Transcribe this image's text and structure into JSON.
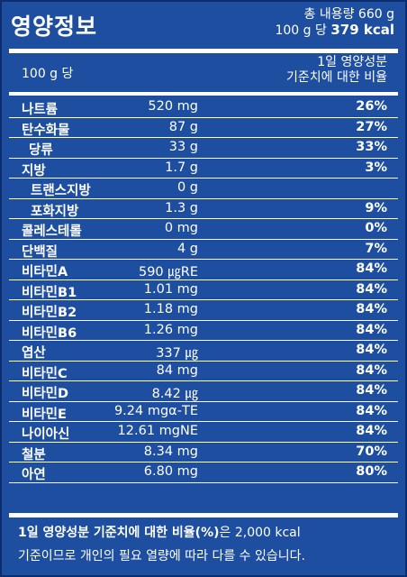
{
  "header": {
    "title": "영양정보",
    "total_label": "총 내용량 660 g",
    "per_label": "100 g 당",
    "kcal": "379 kcal"
  },
  "column_head": {
    "left": "100 g 당",
    "right_line1": "1일 영양성분",
    "right_line2": "기준치에 대한 비율"
  },
  "rows": [
    {
      "name": "나트륨",
      "amount": "520 mg",
      "pct": "26%"
    },
    {
      "name": "탄수화물",
      "amount": "87 g",
      "pct": "27%"
    },
    {
      "name": "당류",
      "amount": "33 g",
      "pct": "33%"
    },
    {
      "name": "지방",
      "amount": "1.7 g",
      "pct": "3%"
    },
    {
      "name": "트랜스지방",
      "amount": "0 g",
      "pct": ""
    },
    {
      "name": "포화지방",
      "amount": "1.3 g",
      "pct": "9%"
    },
    {
      "name": "콜레스테롤",
      "amount": "0 mg",
      "pct": "0%"
    },
    {
      "name": "단백질",
      "amount": "4 g",
      "pct": "7%"
    },
    {
      "name": "비타민A",
      "amount": "590 ㎍RE",
      "pct": "84%"
    },
    {
      "name": "비타민B1",
      "amount": "1.01 mg",
      "pct": "84%"
    },
    {
      "name": "비타민B2",
      "amount": "1.18 mg",
      "pct": "84%"
    },
    {
      "name": "비타민B6",
      "amount": "1.26 mg",
      "pct": "84%"
    },
    {
      "name": "엽산",
      "amount": "337 ㎍",
      "pct": "84%"
    },
    {
      "name": "비타민C",
      "amount": "84 mg",
      "pct": "84%"
    },
    {
      "name": "비타민D",
      "amount": "8.42 ㎍",
      "pct": "84%"
    },
    {
      "name": "비타민E",
      "amount": "9.24 mgα-TE",
      "pct": "84%"
    },
    {
      "name": "나이아신",
      "amount": "12.61 mgNE",
      "pct": "84%"
    },
    {
      "name": "철분",
      "amount": "8.34 mg",
      "pct": "70%"
    },
    {
      "name": "아연",
      "amount": "6.80 mg",
      "pct": "80%"
    }
  ],
  "footer": {
    "line1_bold": "1일 영양성분 기준치에 대한 비율(%)",
    "line1_rest": "은 2,000 kcal",
    "line2": "기준이므로 개인의 필요 열량에 따라 다를 수 있습니다."
  }
}
